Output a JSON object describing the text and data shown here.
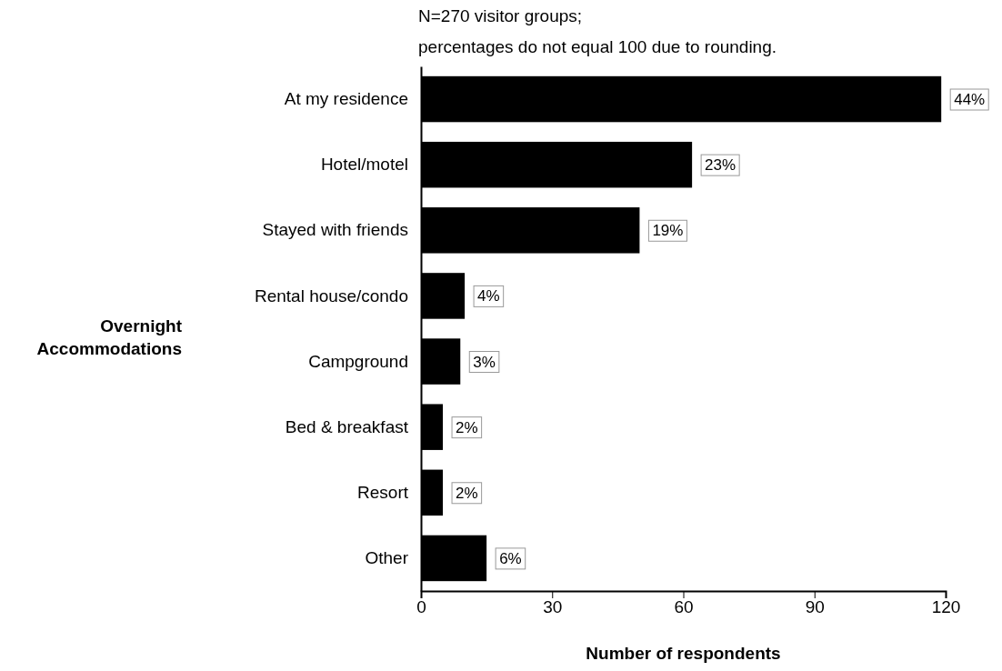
{
  "chart_data": {
    "type": "bar",
    "orientation": "horizontal",
    "title": "N=270 visitor groups;",
    "subtitle": "percentages do not equal 100 due to rounding.",
    "xlabel": "Number of respondents",
    "ylabel": "Overnight Accommodations",
    "categories": [
      "At my residence",
      "Hotel/motel",
      "Stayed with friends",
      "Rental house/condo",
      "Campground",
      "Bed & breakfast",
      "Resort",
      "Other"
    ],
    "values": [
      119,
      62,
      50,
      10,
      9,
      5,
      5,
      15
    ],
    "annotations": [
      {
        "text": "44%",
        "x": 119,
        "y": "At my residence"
      },
      {
        "text": "23%",
        "x": 62,
        "y": "Hotel/motel"
      },
      {
        "text": "19%",
        "x": 50,
        "y": "Stayed with friends"
      },
      {
        "text": "4%",
        "x": 10,
        "y": "Rental house/condo"
      },
      {
        "text": "3%",
        "x": 9,
        "y": "Campground"
      },
      {
        "text": "2%",
        "x": 5,
        "y": "Bed & breakfast"
      },
      {
        "text": "2%",
        "x": 5,
        "y": "Resort"
      },
      {
        "text": "6%",
        "x": 15,
        "y": "Other"
      }
    ],
    "color": "#000000",
    "xlim": [
      0,
      120
    ],
    "xticks": [
      0,
      30,
      60,
      90,
      120
    ],
    "grid": false
  }
}
